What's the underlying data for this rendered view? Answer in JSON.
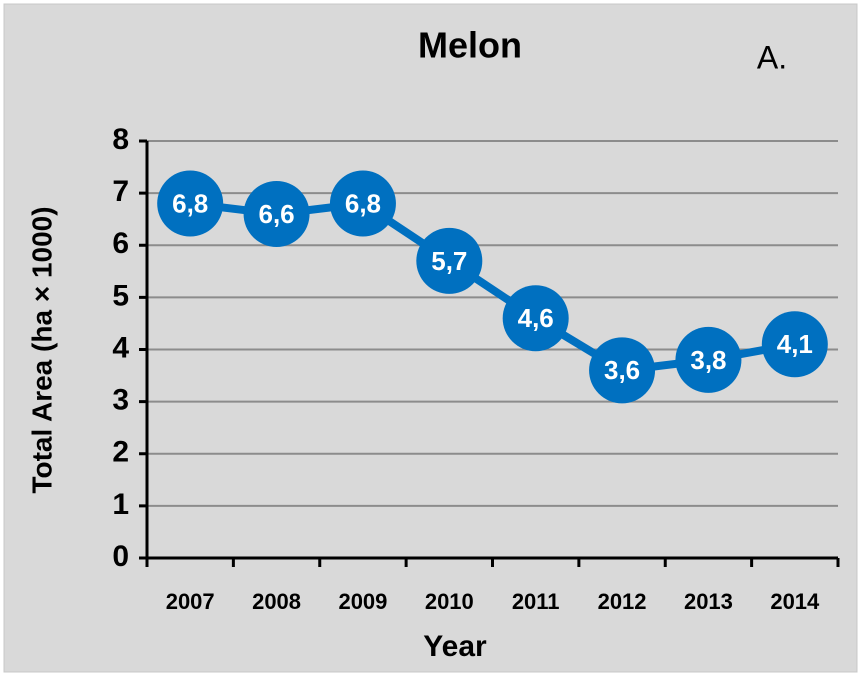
{
  "chart_data": {
    "type": "line",
    "title": "Melon",
    "annotation": "A.",
    "x_label": "Year",
    "y_label": "Total Area (ha × 1000)",
    "categories": [
      "2007",
      "2008",
      "2009",
      "2010",
      "2011",
      "2012",
      "2013",
      "2014"
    ],
    "values": [
      6.8,
      6.6,
      6.8,
      5.7,
      4.6,
      3.6,
      3.8,
      4.1
    ],
    "value_labels": [
      "6,8",
      "6,6",
      "6,8",
      "5,7",
      "4,6",
      "3,6",
      "3,8",
      "4,1"
    ],
    "color": "#0070c0",
    "ylim": [
      0,
      8
    ],
    "yticks": [
      0,
      1,
      2,
      3,
      4,
      5,
      6,
      7,
      8
    ],
    "grid": true
  }
}
